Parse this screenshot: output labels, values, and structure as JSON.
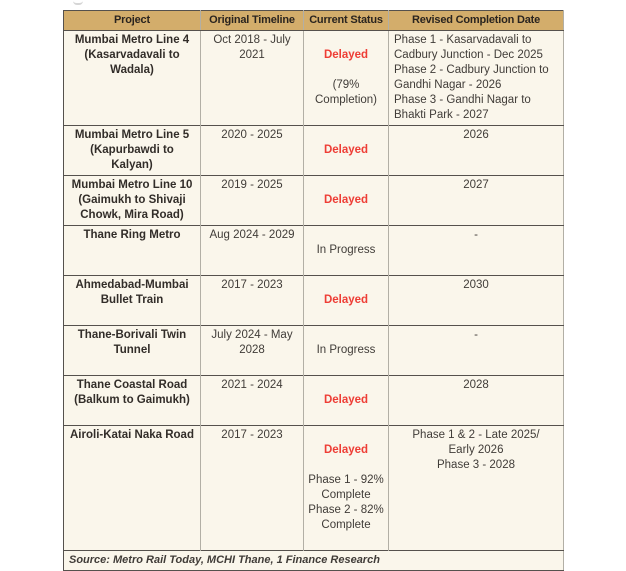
{
  "colors": {
    "header_bg": "#d3ad6b",
    "body_bg": "#faf6eb",
    "header_text": "#2a241f",
    "body_text": "#403c38",
    "project_text": "#322d29",
    "delayed_red": "#ee3d35",
    "grid_dark": "#55514d",
    "grid_light": "#b2afa5"
  },
  "table": {
    "headers": [
      "Project",
      "Original Timeline",
      "Current Status",
      "Revised Completion Date"
    ],
    "rows": [
      {
        "project": "Mumbai Metro Line 4\n(Kasarvadavali to Wadala)",
        "timeline": "Oct 2018 - July 2021",
        "status": "Delayed",
        "status_kind": "delayed",
        "status_detail": "(79% Completion)",
        "revised": "Phase 1 - Kasarvadavali to Cadbury Junction - Dec 2025\nPhase 2 - Cadbury Junction to Gandhi Nagar - 2026\nPhase 3 - Gandhi Nagar to Bhakti Park - 2027"
      },
      {
        "project": "Mumbai Metro Line 5\n(Kapurbawdi to Kalyan)",
        "timeline": "2020 - 2025",
        "status": "Delayed",
        "status_kind": "delayed",
        "status_detail": "",
        "revised": "2026"
      },
      {
        "project": "Mumbai Metro Line 10\n(Gaimukh to Shivaji Chowk, Mira Road)",
        "timeline": "2019 - 2025",
        "status": "Delayed",
        "status_kind": "delayed",
        "status_detail": "",
        "revised": "2027"
      },
      {
        "project": "Thane Ring Metro",
        "timeline": "Aug 2024 - 2029",
        "status": "In Progress",
        "status_kind": "in-progress",
        "status_detail": "",
        "revised": "-"
      },
      {
        "project": "Ahmedabad-Mumbai Bullet Train",
        "timeline": "2017 - 2023",
        "status": "Delayed",
        "status_kind": "delayed",
        "status_detail": "",
        "revised": "2030"
      },
      {
        "project": "Thane-Borivali Twin Tunnel",
        "timeline": "July 2024 - May 2028",
        "status": "In Progress",
        "status_kind": "in-progress",
        "status_detail": "",
        "revised": "-"
      },
      {
        "project": "Thane Coastal Road\n(Balkum to Gaimukh)",
        "timeline": "2021 - 2024",
        "status": "Delayed",
        "status_kind": "delayed",
        "status_detail": "",
        "revised": "2028"
      },
      {
        "project": "Airoli-Katai Naka Road",
        "timeline": "2017 - 2023",
        "status": "Delayed",
        "status_kind": "delayed",
        "status_detail": "Phase 1 - 92% Complete\nPhase 2 - 82% Complete",
        "revised": "Phase 1 & 2 - Late 2025/\nEarly 2026\nPhase 3 - 2028"
      }
    ],
    "source": "Source: Metro Rail Today, MCHI Thane, 1 Finance Research"
  }
}
